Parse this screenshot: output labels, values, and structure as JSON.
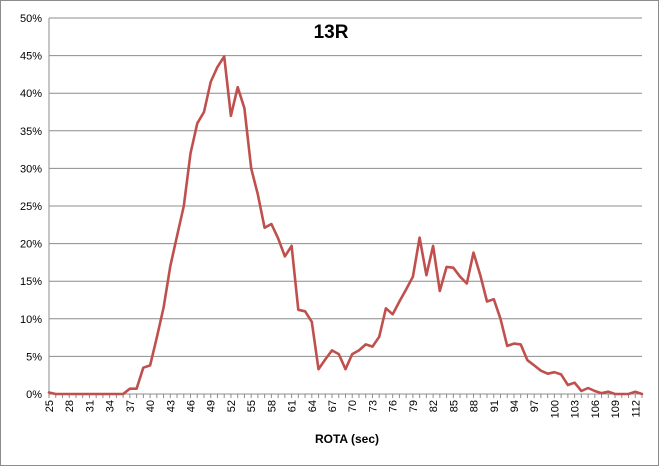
{
  "chart_data": {
    "type": "line",
    "title": "13R",
    "xlabel": "ROTA (sec)",
    "ylabel": "",
    "ylim": [
      0,
      50
    ],
    "y_ticks": [
      "0%",
      "5%",
      "10%",
      "15%",
      "20%",
      "25%",
      "30%",
      "35%",
      "40%",
      "45%",
      "50%"
    ],
    "x_tick_labels": [
      "25",
      "28",
      "31",
      "34",
      "37",
      "40",
      "43",
      "46",
      "49",
      "52",
      "55",
      "58",
      "61",
      "64",
      "67",
      "70",
      "73",
      "76",
      "79",
      "82",
      "85",
      "88",
      "91",
      "94",
      "97",
      "100",
      "103",
      "106",
      "109",
      "112"
    ],
    "grid": "horizontal",
    "legend": "none",
    "series_color": "#c0504d",
    "x": [
      25,
      26,
      27,
      28,
      29,
      30,
      31,
      32,
      33,
      34,
      35,
      36,
      37,
      38,
      39,
      40,
      41,
      42,
      43,
      44,
      45,
      46,
      47,
      48,
      49,
      50,
      51,
      52,
      53,
      54,
      55,
      56,
      57,
      58,
      59,
      60,
      61,
      62,
      63,
      64,
      65,
      66,
      67,
      68,
      69,
      70,
      71,
      72,
      73,
      74,
      75,
      76,
      77,
      78,
      79,
      80,
      81,
      82,
      83,
      84,
      85,
      86,
      87,
      88,
      89,
      90,
      91,
      92,
      93,
      94,
      95,
      96,
      97,
      98,
      99,
      100,
      101,
      102,
      103,
      104,
      105,
      106,
      107,
      108,
      109,
      110,
      111,
      112,
      113
    ],
    "series": [
      {
        "values": [
          0.2,
          0,
          0,
          0,
          0,
          0,
          0,
          0,
          0,
          0,
          0,
          0,
          0.7,
          0.7,
          3.5,
          3.8,
          7.5,
          11.5,
          17,
          21,
          25,
          32,
          36,
          37.5,
          41.5,
          43.5,
          44.9,
          37,
          40.8,
          38,
          30,
          26.5,
          22.1,
          22.6,
          20.7,
          18.3,
          19.7,
          11.2,
          11,
          9.6,
          3.3,
          4.6,
          5.8,
          5.3,
          3.3,
          5.3,
          5.8,
          6.6,
          6.3,
          7.6,
          11.4,
          10.6,
          12.3,
          13.9,
          15.6,
          20.8,
          15.8,
          19.7,
          13.7,
          16.9,
          16.8,
          15.6,
          14.7,
          18.8,
          15.8,
          12.3,
          12.6,
          10,
          6.4,
          6.7,
          6.6,
          4.5,
          3.8,
          3.1,
          2.7,
          2.9,
          2.6,
          1.2,
          1.5,
          0.4,
          0.8,
          0.4,
          0.1,
          0.3,
          0,
          0,
          0,
          0.3,
          0
        ]
      }
    ]
  }
}
